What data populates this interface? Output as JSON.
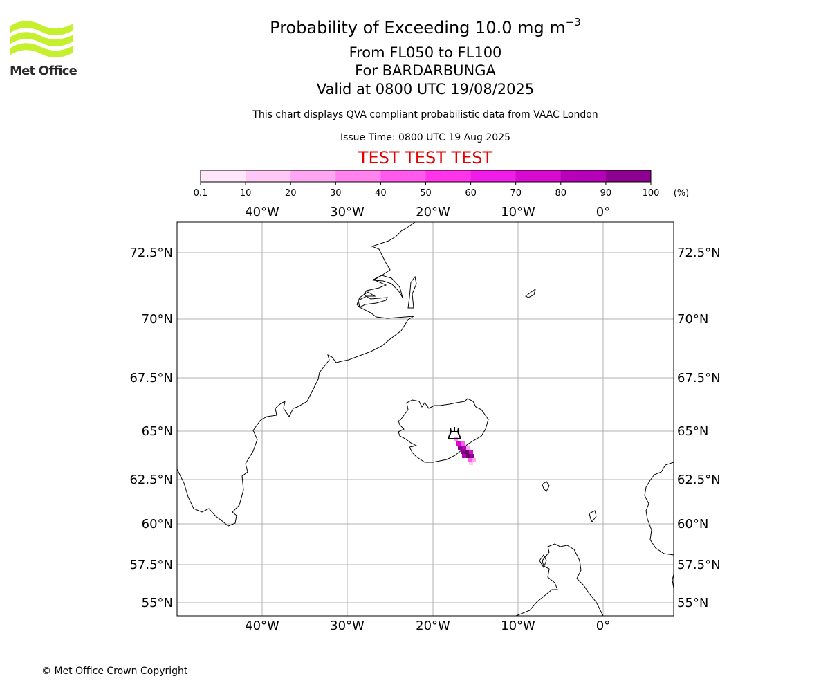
{
  "logo": {
    "name": "Met Office",
    "color": "#c6f02e"
  },
  "header": {
    "title": "Probability of Exceeding 10.0 mg m",
    "title_exponent": "−3",
    "levels": "From FL050 to FL100",
    "volcano": "For BARDARBUNGA",
    "valid": "Valid at 0800 UTC 19/08/2025",
    "disclaimer": "This chart displays QVA compliant probabilistic data from VAAC London",
    "issue_time": "Issue Time: 0800 UTC 19 Aug 2025",
    "test_banner": "TEST TEST TEST"
  },
  "colorbar": {
    "ticks": [
      "0.1",
      "10",
      "20",
      "30",
      "40",
      "50",
      "60",
      "70",
      "80",
      "90",
      "100"
    ],
    "unit": "(%)",
    "colors": [
      "#ffe6fb",
      "#ffc8f7",
      "#ffa6f3",
      "#ff82ef",
      "#ff5aec",
      "#ff33ea",
      "#f21ce8",
      "#d90ad0",
      "#b800b6",
      "#8e0090",
      "#660066"
    ]
  },
  "map": {
    "longitude_labels": [
      "40°W",
      "30°W",
      "20°W",
      "10°W",
      "0°"
    ],
    "latitude_labels": [
      "72.5°N",
      "70°N",
      "67.5°N",
      "65°N",
      "62.5°N",
      "60°N",
      "57.5°N",
      "55°N"
    ],
    "gridline_color": "#b0b0b0",
    "volcano_marker": "volcano-icon"
  },
  "footer": {
    "copyright": "© Met Office Crown Copyright"
  }
}
